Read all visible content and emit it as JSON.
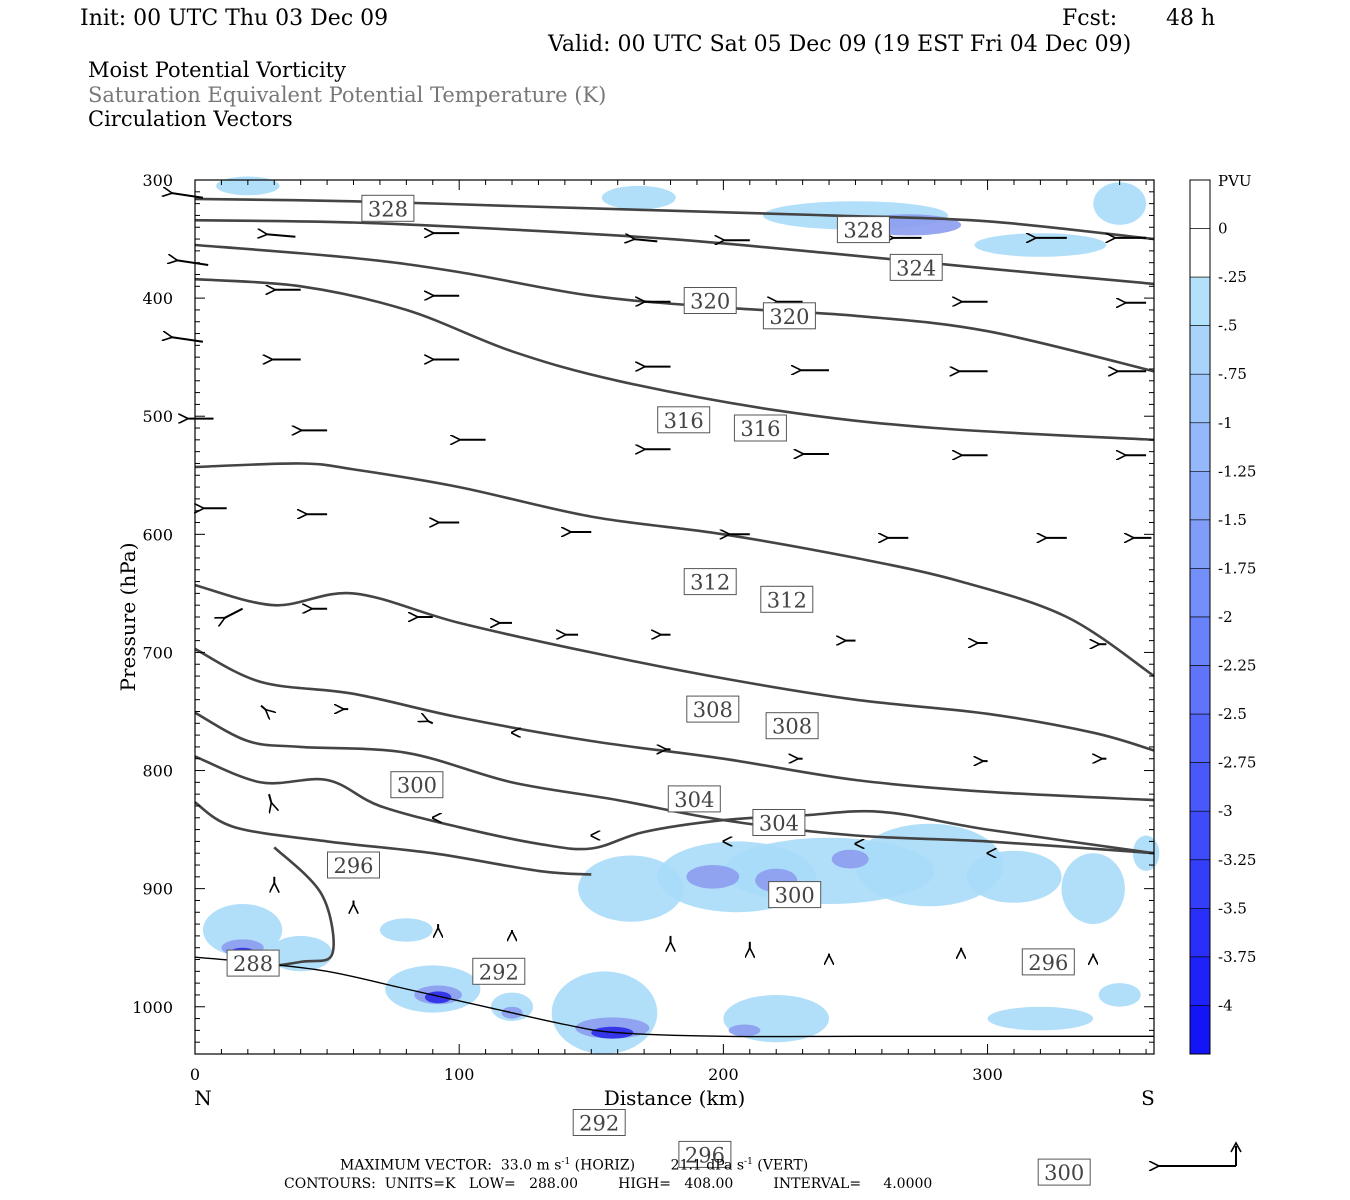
{
  "header": {
    "init": "Init: 00 UTC Thu 03 Dec 09",
    "fcst_label": "Fcst:",
    "fcst_value": "48 h",
    "valid": "Valid: 00 UTC Sat 05 Dec 09 (19 EST Fri 04 Dec 09)"
  },
  "legend_titles": {
    "line1": "Moist Potential Vorticity",
    "line2": "Saturation Equivalent Potential Temperature (K)",
    "line3": "Circulation Vectors"
  },
  "footer": {
    "line1_prefix": "MAXIMUM VECTOR:  33.0 m s",
    "line1_mid": " (HORIZ)        21.1 dPa s",
    "line1_suffix": " (VERT)",
    "exp": "-1",
    "line2": "CONTOURS:  UNITS=K   LOW=   288.00         HIGH=   408.00         INTERVAL=     4.0000"
  },
  "colors": {
    "contour": "#444444",
    "vector": "#000000",
    "pv_light": "#a8dcf8",
    "pv_mid": "#8c9cf0",
    "pv_dark": "#2a2ae6"
  },
  "chart_data": {
    "type": "cross-section",
    "xlabel": "Distance (km)",
    "ylabel": "Pressure (hPa)",
    "x_range": [
      0,
      363
    ],
    "y_range": [
      1040,
      300
    ],
    "x_ticks": [
      0,
      100,
      200,
      300
    ],
    "y_ticks": [
      300,
      400,
      500,
      600,
      700,
      800,
      900,
      1000
    ],
    "end_labels": {
      "left": "N",
      "right": "S"
    },
    "colorbar": {
      "unit": "PVU",
      "levels": [
        "0",
        "-.25",
        "-.5",
        "-.75",
        "-1",
        "-1.25",
        "-1.5",
        "-1.75",
        "-2",
        "-2.25",
        "-2.5",
        "-2.75",
        "-3",
        "-3.25",
        "-3.5",
        "-3.75",
        "-4"
      ]
    },
    "contours": [
      {
        "value": 328,
        "labels": [
          [
            73,
            324
          ],
          [
            253,
            342
          ]
        ],
        "points": [
          [
            0,
            316
          ],
          [
            60,
            318
          ],
          [
            120,
            322
          ],
          [
            180,
            326
          ],
          [
            240,
            330
          ],
          [
            300,
            335
          ],
          [
            363,
            350
          ]
        ]
      },
      {
        "value": 324,
        "labels": [
          [
            273,
            374
          ]
        ],
        "points": [
          [
            0,
            334
          ],
          [
            60,
            336
          ],
          [
            120,
            342
          ],
          [
            180,
            350
          ],
          [
            240,
            362
          ],
          [
            300,
            375
          ],
          [
            363,
            388
          ]
        ]
      },
      {
        "value": 320,
        "labels": [
          [
            195,
            402
          ],
          [
            225,
            415
          ]
        ],
        "points": [
          [
            0,
            355
          ],
          [
            60,
            366
          ],
          [
            100,
            378
          ],
          [
            150,
            398
          ],
          [
            200,
            408
          ],
          [
            250,
            415
          ],
          [
            300,
            428
          ],
          [
            363,
            462
          ]
        ]
      },
      {
        "value": 316,
        "labels": [
          [
            185,
            503
          ],
          [
            214,
            510
          ]
        ],
        "points": [
          [
            0,
            384
          ],
          [
            40,
            390
          ],
          [
            80,
            410
          ],
          [
            120,
            445
          ],
          [
            160,
            470
          ],
          [
            220,
            495
          ],
          [
            280,
            510
          ],
          [
            363,
            520
          ]
        ]
      },
      {
        "value": 312,
        "labels": [
          [
            195,
            640
          ],
          [
            224,
            655
          ]
        ],
        "points": [
          [
            0,
            543
          ],
          [
            40,
            540
          ],
          [
            60,
            545
          ],
          [
            100,
            560
          ],
          [
            150,
            585
          ],
          [
            200,
            600
          ],
          [
            250,
            620
          ],
          [
            290,
            640
          ],
          [
            330,
            670
          ],
          [
            363,
            720
          ]
        ]
      },
      {
        "value": 308,
        "labels": [
          [
            196,
            748
          ],
          [
            226,
            762
          ]
        ],
        "points": [
          [
            0,
            643
          ],
          [
            30,
            660
          ],
          [
            60,
            650
          ],
          [
            100,
            675
          ],
          [
            150,
            700
          ],
          [
            200,
            722
          ],
          [
            250,
            740
          ],
          [
            300,
            752
          ],
          [
            340,
            768
          ],
          [
            363,
            783
          ]
        ]
      },
      {
        "value": 304,
        "labels": [
          [
            189,
            824
          ],
          [
            221,
            844
          ]
        ],
        "points": [
          [
            0,
            697
          ],
          [
            25,
            725
          ],
          [
            60,
            735
          ],
          [
            100,
            755
          ],
          [
            150,
            775
          ],
          [
            200,
            790
          ],
          [
            250,
            808
          ],
          [
            300,
            818
          ],
          [
            363,
            825
          ]
        ]
      },
      {
        "value": 300,
        "labels": [
          [
            84,
            812
          ],
          [
            227,
            905
          ],
          [
            329,
            1140
          ]
        ],
        "points": [
          [
            0,
            751
          ],
          [
            20,
            775
          ],
          [
            40,
            780
          ],
          [
            80,
            785
          ],
          [
            120,
            810
          ],
          [
            160,
            825
          ],
          [
            200,
            842
          ],
          [
            250,
            855
          ],
          [
            300,
            860
          ],
          [
            363,
            870
          ]
        ]
      },
      {
        "value": 296,
        "labels": [
          [
            60,
            880
          ],
          [
            193,
            1125
          ],
          [
            323,
            962
          ]
        ],
        "points": [
          [
            0,
            788
          ],
          [
            25,
            810
          ],
          [
            50,
            808
          ],
          [
            70,
            830
          ],
          [
            100,
            848
          ],
          [
            130,
            862
          ],
          [
            150,
            866
          ],
          [
            170,
            852
          ],
          [
            200,
            842
          ],
          [
            230,
            838
          ],
          [
            260,
            835
          ],
          [
            300,
            850
          ],
          [
            363,
            870
          ]
        ]
      },
      {
        "value": 292,
        "labels": [
          [
            115,
            970
          ],
          [
            153,
            1098
          ]
        ],
        "points": [
          [
            0,
            827
          ],
          [
            15,
            848
          ],
          [
            50,
            860
          ],
          [
            90,
            870
          ],
          [
            130,
            885
          ],
          [
            150,
            888
          ]
        ]
      },
      {
        "value": 288,
        "labels": [
          [
            22,
            963
          ]
        ],
        "points": [
          [
            22,
            968
          ],
          [
            40,
            962
          ],
          [
            52,
            955
          ],
          [
            48,
            905
          ],
          [
            30,
            865
          ]
        ]
      }
    ],
    "vectors": [
      {
        "row": 300,
        "points": [
          [
            3,
            315,
            -12,
            -2
          ],
          [
            38,
            348,
            -11,
            -1
          ],
          [
            100,
            345,
            -10,
            0
          ],
          [
            175,
            352,
            -9,
            -1
          ],
          [
            210,
            351,
            -10,
            0
          ],
          [
            275,
            349,
            -11,
            0
          ],
          [
            330,
            349,
            -12,
            0
          ],
          [
            360,
            349,
            -12,
            0
          ]
        ]
      },
      {
        "row": 400,
        "points": [
          [
            5,
            372,
            -12,
            -2
          ],
          [
            40,
            393,
            -10,
            0
          ],
          [
            100,
            398,
            -10,
            0
          ],
          [
            180,
            403,
            -10,
            0
          ],
          [
            230,
            403,
            -10,
            0
          ],
          [
            300,
            403,
            -10,
            0
          ],
          [
            360,
            404,
            -8,
            0
          ]
        ]
      },
      {
        "row": 450,
        "points": [
          [
            3,
            437,
            -12,
            -2
          ],
          [
            40,
            452,
            -11,
            0
          ],
          [
            100,
            452,
            -10,
            0
          ],
          [
            180,
            458,
            -10,
            0
          ],
          [
            240,
            461,
            -11,
            0
          ],
          [
            300,
            462,
            -11,
            0
          ],
          [
            360,
            462,
            -11,
            0
          ]
        ]
      },
      {
        "row": 500,
        "points": [
          [
            7,
            502,
            -10,
            0
          ],
          [
            50,
            512,
            -10,
            0
          ],
          [
            110,
            520,
            -10,
            0
          ],
          [
            180,
            528,
            -10,
            0
          ],
          [
            240,
            532,
            -10,
            0
          ],
          [
            300,
            533,
            -10,
            0
          ],
          [
            360,
            533,
            -8,
            0
          ]
        ]
      },
      {
        "row": 580,
        "points": [
          [
            12,
            578,
            -9,
            0
          ],
          [
            50,
            583,
            -8,
            0
          ],
          [
            100,
            590,
            -8,
            0
          ],
          [
            150,
            598,
            -8,
            0
          ],
          [
            210,
            600,
            -8,
            0
          ],
          [
            270,
            603,
            -8,
            0
          ],
          [
            330,
            603,
            -8,
            0
          ],
          [
            362,
            603,
            -7,
            0
          ]
        ]
      },
      {
        "row": 660,
        "points": [
          [
            18,
            663,
            -7,
            4
          ],
          [
            50,
            663,
            -6,
            0
          ],
          [
            90,
            670,
            -6,
            0
          ],
          [
            120,
            675,
            -5,
            0
          ],
          [
            145,
            685,
            -5,
            0
          ],
          [
            180,
            685,
            -4,
            0
          ],
          [
            250,
            690,
            -4,
            0
          ],
          [
            300,
            692,
            -4,
            0
          ],
          [
            345,
            693,
            -3,
            0
          ]
        ]
      },
      {
        "row": 750,
        "points": [
          [
            25,
            745,
            2,
            2
          ],
          [
            58,
            748,
            -2,
            0
          ],
          [
            90,
            760,
            -2,
            -1
          ],
          [
            120,
            768,
            0,
            0
          ],
          [
            180,
            782,
            -2,
            0
          ],
          [
            230,
            790,
            -2,
            0
          ],
          [
            300,
            792,
            -2,
            0
          ],
          [
            345,
            790,
            -2,
            0
          ]
        ]
      },
      {
        "row": 850,
        "points": [
          [
            28,
            820,
            1,
            4
          ],
          [
            90,
            840,
            0,
            0
          ],
          [
            150,
            855,
            0,
            0
          ],
          [
            200,
            860,
            0,
            0
          ],
          [
            250,
            862,
            0,
            0
          ],
          [
            300,
            870,
            0,
            0
          ]
        ]
      },
      {
        "row": 900,
        "points": [
          [
            30,
            890,
            0,
            3
          ],
          [
            60,
            910,
            0,
            2
          ],
          [
            92,
            930,
            0,
            2
          ],
          [
            120,
            935,
            0,
            1
          ],
          [
            180,
            940,
            0,
            3
          ],
          [
            210,
            945,
            0,
            3
          ],
          [
            240,
            955,
            0,
            1
          ],
          [
            290,
            950,
            0,
            1
          ],
          [
            340,
            955,
            0,
            1
          ]
        ]
      }
    ],
    "terrain": [
      [
        0,
        958
      ],
      [
        20,
        962
      ],
      [
        50,
        970
      ],
      [
        80,
        985
      ],
      [
        110,
        1000
      ],
      [
        140,
        1015
      ],
      [
        160,
        1022
      ],
      [
        200,
        1025
      ],
      [
        250,
        1025
      ],
      [
        300,
        1025
      ],
      [
        363,
        1025
      ]
    ]
  }
}
